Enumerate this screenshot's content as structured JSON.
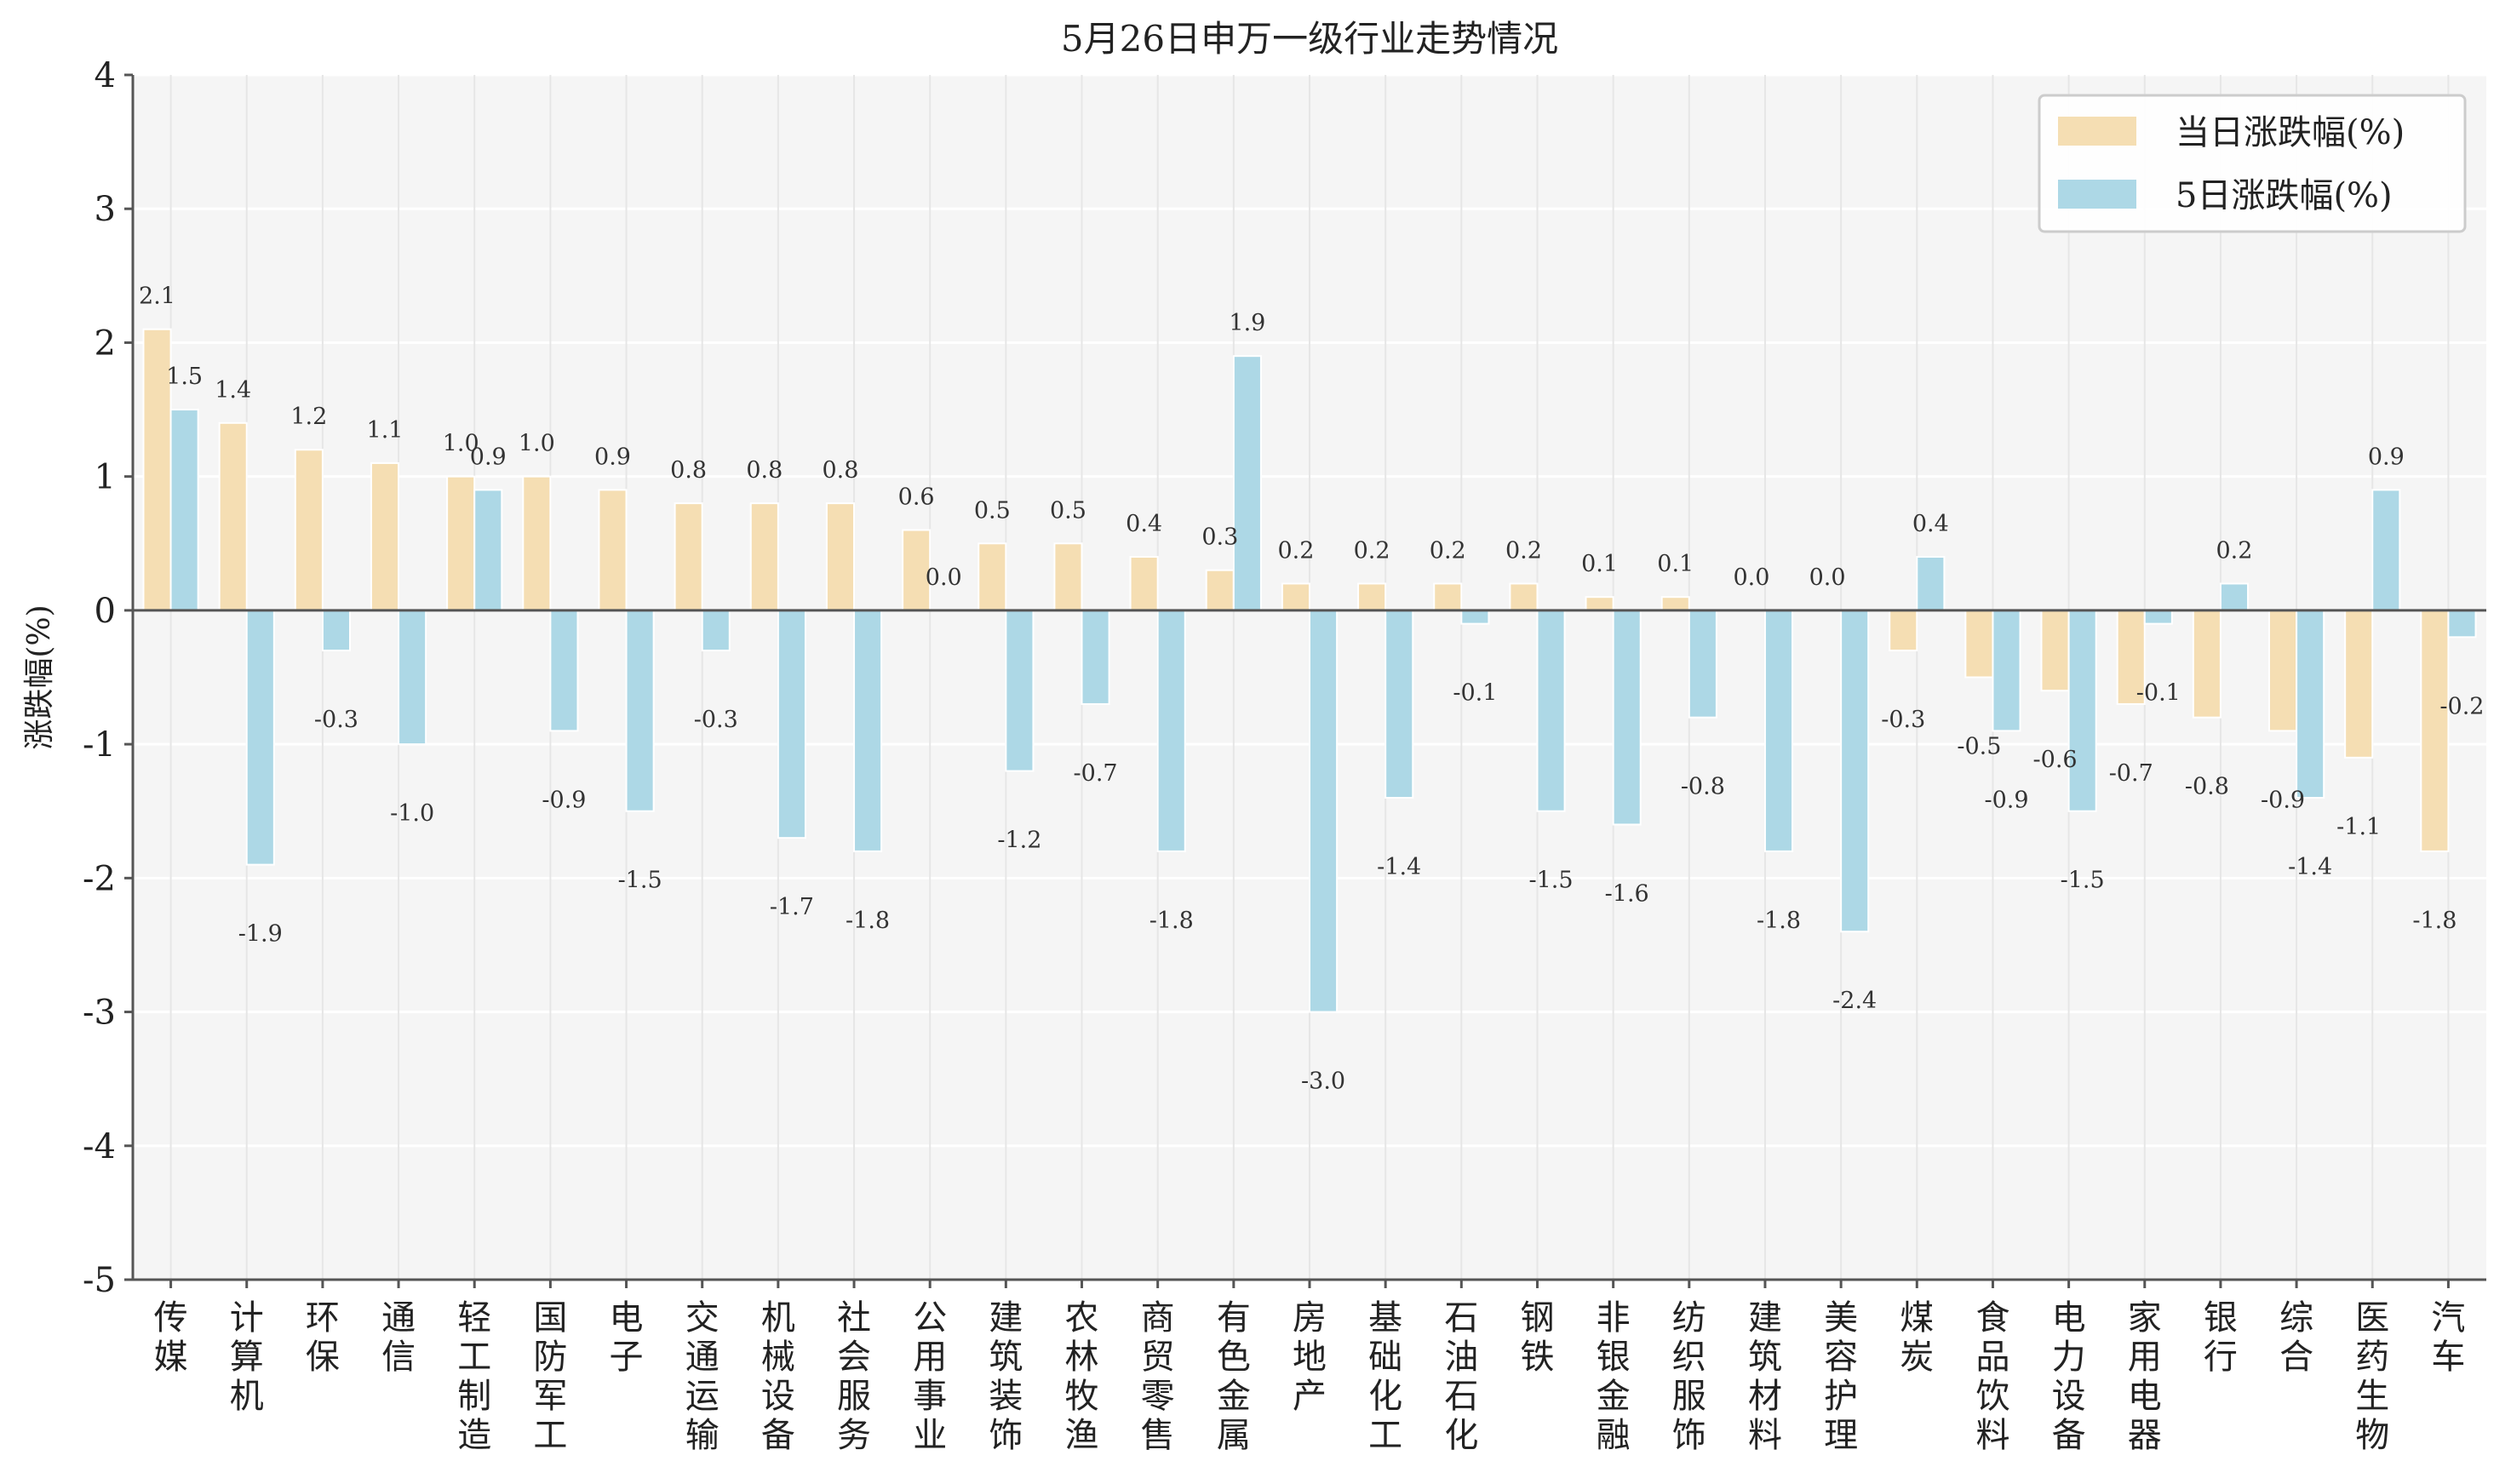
{
  "chart_data": {
    "type": "bar",
    "title": "5月26日申万一级行业走势情况",
    "ylabel": "涨跌幅(%)",
    "xlabel": "",
    "ylim": [
      -5,
      4
    ],
    "yticks": [
      "4",
      "3",
      "2",
      "1",
      "0",
      "-1",
      "-2",
      "-3",
      "-4",
      "-5"
    ],
    "ytick_values": [
      4,
      3,
      2,
      1,
      0,
      -1,
      -2,
      -3,
      -4,
      -5
    ],
    "grid": true,
    "legend_position": "top-right",
    "categories": [
      "传媒",
      "计算机",
      "环保",
      "通信",
      "轻工制造",
      "国防军工",
      "电子",
      "交通运输",
      "机械设备",
      "社会服务",
      "公用事业",
      "建筑装饰",
      "农林牧渔",
      "商贸零售",
      "有色金属",
      "房地产",
      "基础化工",
      "石油石化",
      "钢铁",
      "非银金融",
      "纺织服饰",
      "建筑材料",
      "美容护理",
      "煤炭",
      "食品饮料",
      "电力设备",
      "家用电器",
      "银行",
      "综合",
      "医药生物",
      "汽车"
    ],
    "series": [
      {
        "name": "当日涨跌幅(%)",
        "color": "#f5deb3",
        "values": [
          2.1,
          1.4,
          1.2,
          1.1,
          1.0,
          1.0,
          0.9,
          0.8,
          0.8,
          0.8,
          0.6,
          0.5,
          0.5,
          0.4,
          0.3,
          0.2,
          0.2,
          0.2,
          0.2,
          0.1,
          0.1,
          0.0,
          0.0,
          -0.3,
          -0.5,
          -0.6,
          -0.7,
          -0.8,
          -0.9,
          -1.1,
          -1.8
        ],
        "labels": [
          "2.1",
          "1.4",
          "1.2",
          "1.1",
          "1.0",
          "1.0",
          "0.9",
          "0.8",
          "0.8",
          "0.8",
          "0.6",
          "0.5",
          "0.5",
          "0.4",
          "0.3",
          "0.2",
          "0.2",
          "0.2",
          "0.2",
          "0.1",
          "0.1",
          "0.0",
          "0.0",
          "-0.3",
          "-0.5",
          "-0.6",
          "-0.7",
          "-0.8",
          "-0.9",
          "-1.1",
          "-1.8"
        ]
      },
      {
        "name": "5日涨跌幅(%)",
        "color": "#add8e6",
        "values": [
          1.5,
          -1.9,
          -0.3,
          -1.0,
          0.9,
          -0.9,
          -1.5,
          -0.3,
          -1.7,
          -1.8,
          0.0,
          -1.2,
          -0.7,
          -1.8,
          1.9,
          -3.0,
          -1.4,
          -0.1,
          -1.5,
          -1.6,
          -0.8,
          -1.8,
          -2.4,
          0.4,
          -0.9,
          -1.5,
          -0.1,
          0.2,
          -1.4,
          0.9,
          -0.2
        ],
        "labels": [
          "1.5",
          "-1.9",
          "-0.3",
          "-1.0",
          "0.9",
          "-0.9",
          "-1.5",
          "-0.3",
          "-1.7",
          "-1.8",
          "0.0",
          "-1.2",
          "-0.7",
          "-1.8",
          "1.9",
          "-3.0",
          "-1.4",
          "-0.1",
          "-1.5",
          "-1.6",
          "-0.8",
          "-1.8",
          "-2.4",
          "0.4",
          "-0.9",
          "-1.5",
          "-0.1",
          "0.2",
          "-1.4",
          "0.9",
          "-0.2"
        ]
      }
    ]
  }
}
